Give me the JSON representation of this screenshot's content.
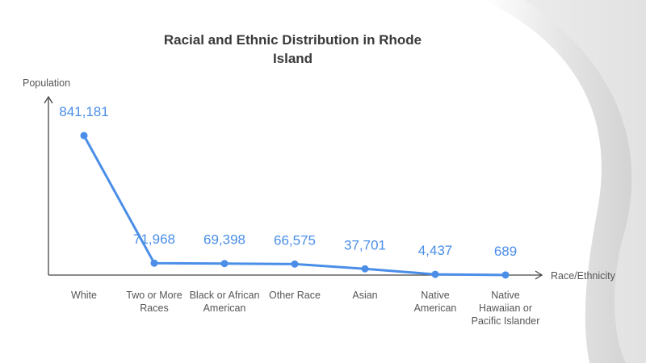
{
  "chart_data": {
    "type": "line",
    "title": "Racial and Ethnic Distribution in Rhode Island",
    "x_label": "Race/Ethnicity",
    "y_label": "Population",
    "categories": [
      "White",
      "Two or More Races",
      "Black or African American",
      "Other Race",
      "Asian",
      "Native American",
      "Native Hawaiian or Pacific Islander"
    ],
    "values": [
      841181,
      71968,
      69398,
      66575,
      37701,
      4437,
      689
    ],
    "value_labels": [
      "841,181",
      "71,968",
      "69,398",
      "66,575",
      "37,701",
      "4,437",
      "689"
    ],
    "color": "#4a8ee8",
    "ylim": [
      0,
      900000
    ]
  }
}
